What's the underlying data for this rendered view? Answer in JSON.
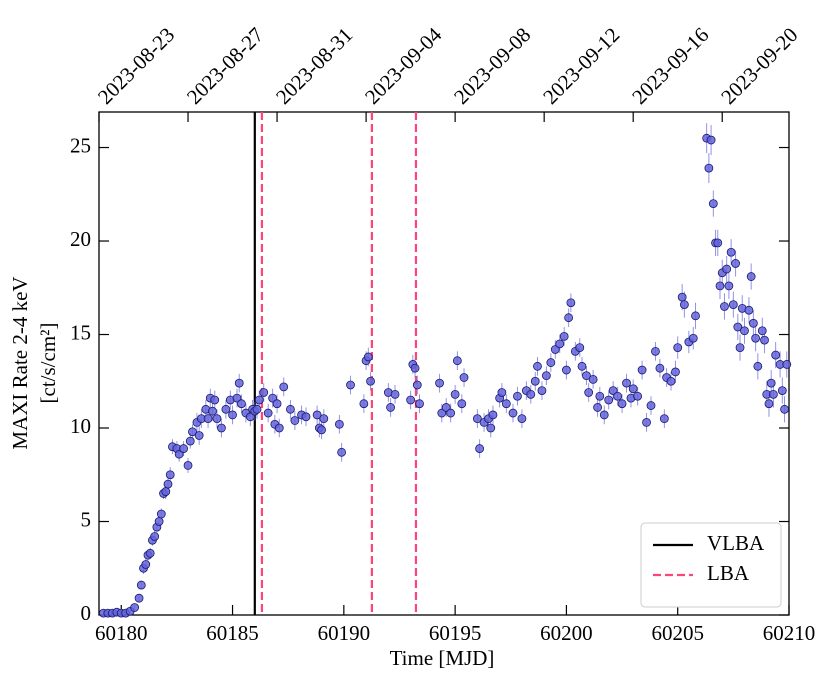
{
  "chart_data": {
    "type": "errorbar_scatter",
    "xlabel": "Time [MJD]",
    "ylabel": [
      "MAXI Rate 2-4 keV",
      "[ct/s/cm²]"
    ],
    "xlim": [
      60179,
      60210
    ],
    "ylim": [
      0,
      26.9
    ],
    "xticks": [
      60180,
      60185,
      60190,
      60195,
      60200,
      60205,
      60210
    ],
    "yticks": [
      0,
      5,
      10,
      15,
      20,
      25
    ],
    "x2ticks": [
      {
        "value": 60179,
        "label": "2023-08-23"
      },
      {
        "value": 60183,
        "label": "2023-08-27"
      },
      {
        "value": 60187,
        "label": "2023-08-31"
      },
      {
        "value": 60191,
        "label": "2023-09-04"
      },
      {
        "value": 60195,
        "label": "2023-09-08"
      },
      {
        "value": 60199,
        "label": "2023-09-12"
      },
      {
        "value": 60203,
        "label": "2023-09-16"
      },
      {
        "value": 60207,
        "label": "2023-09-20"
      }
    ],
    "color": "#6464dc",
    "edgecolor": "#1a1a6e",
    "x": [
      60179.2,
      60179.4,
      60179.6,
      60179.8,
      60180.0,
      60180.2,
      60180.4,
      60180.6,
      60180.8,
      60180.9,
      60181.0,
      60181.1,
      60181.2,
      60181.3,
      60181.4,
      60181.5,
      60181.6,
      60181.7,
      60181.8,
      60181.9,
      60182.0,
      60182.1,
      60182.2,
      60182.3,
      60182.5,
      60182.6,
      60182.8,
      60183.0,
      60183.1,
      60183.2,
      60183.4,
      60183.5,
      60183.6,
      60183.8,
      60183.9,
      60184.0,
      60184.1,
      60184.2,
      60184.3,
      60184.5,
      60184.7,
      60184.9,
      60185.0,
      60185.2,
      60185.3,
      60185.4,
      60185.6,
      60185.8,
      60185.9,
      60186.0,
      60186.1,
      60186.2,
      60186.4,
      60186.6,
      60186.8,
      60186.9,
      60187.0,
      60187.1,
      60187.3,
      60187.6,
      60187.8,
      60188.1,
      60188.3,
      60188.8,
      60188.9,
      60189.0,
      60189.1,
      60189.8,
      60189.9,
      60190.3,
      60190.9,
      60191.0,
      60191.1,
      60191.2,
      60192.0,
      60192.1,
      60192.3,
      60193.0,
      60193.1,
      60193.2,
      60193.3,
      60193.4,
      60194.3,
      60194.4,
      60194.6,
      60194.8,
      60195.0,
      60195.1,
      60195.3,
      60195.4,
      60196.0,
      60196.1,
      60196.3,
      60196.5,
      60196.6,
      60196.7,
      60197.0,
      60197.1,
      60197.3,
      60197.6,
      60197.8,
      60198.0,
      60198.2,
      60198.4,
      60198.6,
      60198.7,
      60198.9,
      60199.1,
      60199.3,
      60199.5,
      60199.7,
      60199.9,
      60200.0,
      60200.1,
      60200.2,
      60200.4,
      60200.6,
      60200.7,
      60200.9,
      60201.0,
      60201.2,
      60201.4,
      60201.5,
      60201.7,
      60201.9,
      60202.1,
      60202.3,
      60202.5,
      60202.7,
      60202.9,
      60203.0,
      60203.2,
      60203.4,
      60203.6,
      60203.8,
      60204.0,
      60204.2,
      60204.4,
      60204.5,
      60204.7,
      60204.9,
      60205.0,
      60205.2,
      60205.3,
      60205.5,
      60205.7,
      60205.8,
      60206.3,
      60206.4,
      60206.5,
      60206.6,
      60206.7,
      60206.8,
      60206.9,
      60207.0,
      60207.1,
      60207.2,
      60207.3,
      60207.4,
      60207.5,
      60207.6,
      60207.7,
      60207.8,
      60207.9,
      60208.0,
      60208.2,
      60208.3,
      60208.4,
      60208.5,
      60208.6,
      60208.8,
      60208.9,
      60209.0,
      60209.1,
      60209.2,
      60209.3,
      60209.4,
      60209.6,
      60209.7,
      60209.8,
      60209.9
    ],
    "values": [
      0.1,
      0.1,
      0.1,
      0.15,
      0.1,
      0.1,
      0.2,
      0.4,
      0.9,
      1.6,
      2.5,
      2.7,
      3.2,
      3.3,
      4.0,
      4.2,
      4.7,
      5.0,
      5.4,
      6.5,
      6.6,
      7.0,
      7.5,
      9.0,
      8.9,
      8.6,
      8.9,
      8.0,
      9.3,
      9.8,
      10.3,
      9.6,
      10.5,
      11.0,
      10.5,
      11.6,
      10.9,
      11.5,
      10.5,
      10.0,
      11.0,
      11.5,
      10.7,
      11.6,
      12.4,
      11.3,
      10.8,
      10.6,
      11.0,
      10.9,
      11.0,
      11.5,
      11.9,
      10.8,
      11.6,
      10.2,
      11.3,
      10.0,
      12.2,
      11.0,
      10.4,
      10.7,
      10.6,
      10.7,
      10.0,
      9.9,
      10.5,
      10.2,
      8.7,
      12.3,
      11.3,
      13.6,
      13.8,
      12.5,
      11.9,
      11.1,
      11.8,
      11.5,
      13.4,
      13.2,
      12.3,
      11.3,
      12.4,
      10.8,
      11.1,
      10.8,
      11.8,
      13.6,
      11.3,
      12.7,
      10.5,
      8.9,
      10.3,
      10.5,
      10.0,
      10.7,
      11.6,
      11.9,
      11.3,
      10.8,
      11.7,
      10.5,
      12.0,
      11.8,
      12.5,
      13.3,
      12.0,
      12.8,
      13.5,
      14.2,
      14.5,
      14.9,
      13.1,
      15.9,
      16.7,
      14.1,
      14.3,
      13.3,
      12.8,
      11.9,
      12.6,
      11.1,
      11.7,
      10.7,
      11.5,
      12.0,
      11.7,
      11.3,
      12.4,
      11.6,
      12.1,
      11.7,
      13.1,
      10.3,
      11.2,
      14.1,
      13.2,
      10.5,
      12.7,
      12.5,
      13.0,
      14.3,
      17.0,
      16.6,
      14.6,
      14.8,
      16.0,
      25.5,
      23.9,
      25.4,
      22.0,
      19.9,
      19.9,
      17.6,
      18.3,
      16.5,
      18.5,
      17.6,
      19.4,
      16.6,
      18.8,
      15.4,
      14.3,
      16.4,
      15.2,
      16.3,
      18.1,
      15.6,
      14.8,
      13.3,
      15.2,
      14.7,
      11.8,
      11.3,
      12.4,
      11.8,
      13.9,
      13.4,
      12.0,
      11.0,
      13.4
    ],
    "errors": [
      0.2,
      0.2,
      0.2,
      0.2,
      0.2,
      0.2,
      0.2,
      0.2,
      0.2,
      0.2,
      0.3,
      0.3,
      0.3,
      0.3,
      0.3,
      0.3,
      0.3,
      0.3,
      0.3,
      0.3,
      0.4,
      0.4,
      0.4,
      0.4,
      0.4,
      0.4,
      0.4,
      0.4,
      0.4,
      0.4,
      0.5,
      0.5,
      0.5,
      0.5,
      0.5,
      0.5,
      0.5,
      0.5,
      0.5,
      0.5,
      0.5,
      0.5,
      0.5,
      0.5,
      0.5,
      0.5,
      0.5,
      0.5,
      0.5,
      0.5,
      0.5,
      0.5,
      0.5,
      0.5,
      0.5,
      0.5,
      0.5,
      0.5,
      0.5,
      0.5,
      0.5,
      0.5,
      0.5,
      0.5,
      0.5,
      0.5,
      0.5,
      0.5,
      0.5,
      0.5,
      0.5,
      0.5,
      0.5,
      0.5,
      0.5,
      0.5,
      0.5,
      0.5,
      0.5,
      0.5,
      0.5,
      0.5,
      0.5,
      0.5,
      0.5,
      0.5,
      0.5,
      0.5,
      0.5,
      0.5,
      0.5,
      0.5,
      0.5,
      0.5,
      0.5,
      0.5,
      0.5,
      0.5,
      0.5,
      0.5,
      0.5,
      0.5,
      0.5,
      0.5,
      0.5,
      0.5,
      0.5,
      0.5,
      0.5,
      0.5,
      0.5,
      0.5,
      0.5,
      0.5,
      0.5,
      0.5,
      0.5,
      0.5,
      0.5,
      0.5,
      0.5,
      0.5,
      0.5,
      0.5,
      0.5,
      0.5,
      0.5,
      0.5,
      0.5,
      0.5,
      0.5,
      0.5,
      0.5,
      0.5,
      0.5,
      0.5,
      0.5,
      0.5,
      0.5,
      0.5,
      0.6,
      0.6,
      0.7,
      0.7,
      0.6,
      0.6,
      0.7,
      0.8,
      0.8,
      0.8,
      0.7,
      0.7,
      0.7,
      0.7,
      0.7,
      0.7,
      0.7,
      0.7,
      0.7,
      0.7,
      0.7,
      0.7,
      0.7,
      0.7,
      0.7,
      0.7,
      0.7,
      0.7,
      0.7,
      0.7,
      0.7,
      0.7,
      0.7,
      0.7,
      0.7,
      0.7,
      0.7,
      0.7,
      0.7,
      0.7,
      0.7
    ],
    "vlines": [
      {
        "name": "VLBA",
        "color": "#000000",
        "style": "solid",
        "x": [
          60186.0
        ]
      },
      {
        "name": "LBA",
        "color": "#ff4477",
        "style": "dashed",
        "x": [
          60186.32,
          60191.26,
          60193.24
        ]
      }
    ],
    "legend": "lower right"
  }
}
